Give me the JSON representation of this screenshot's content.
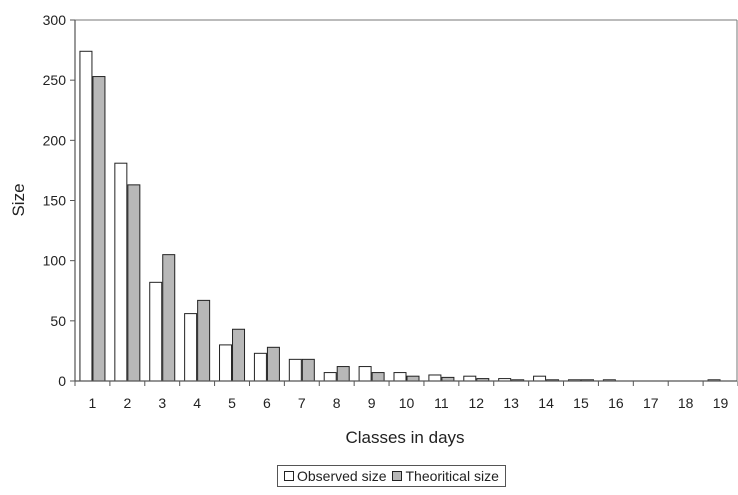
{
  "chart_data": {
    "type": "bar",
    "xlabel": "Classes in days",
    "ylabel": "Size",
    "ylim": [
      0,
      300
    ],
    "yticks": [
      "0",
      "50",
      "100",
      "150",
      "200",
      "250",
      "300"
    ],
    "categories": [
      "1",
      "2",
      "3",
      "4",
      "5",
      "6",
      "7",
      "8",
      "9",
      "10",
      "11",
      "12",
      "13",
      "14",
      "15",
      "16",
      "17",
      "18",
      "19"
    ],
    "series": [
      {
        "name": "Observed size",
        "color": "#ffffff",
        "values": [
          274,
          181,
          82,
          56,
          30,
          23,
          18,
          7,
          12,
          7,
          5,
          4,
          2,
          4,
          1,
          1,
          0,
          0,
          1
        ]
      },
      {
        "name": "Theoritical size",
        "color": "#b8b8b8",
        "values": [
          253,
          163,
          105,
          67,
          43,
          28,
          18,
          12,
          7,
          4,
          3,
          2,
          1,
          1,
          1,
          0,
          0,
          0,
          0
        ]
      }
    ],
    "grid": false,
    "legend_position": "bottom"
  }
}
